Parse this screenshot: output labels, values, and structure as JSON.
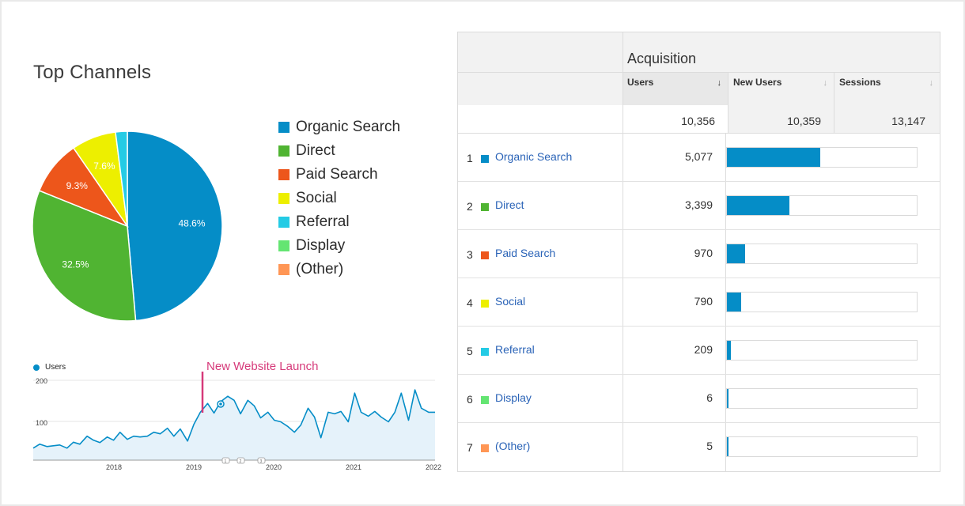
{
  "pie": {
    "title": "Top Channels",
    "slices": [
      {
        "name": "Organic Search",
        "value": 48.6,
        "label": "48.6%",
        "color": "#058dc7"
      },
      {
        "name": "Direct",
        "value": 32.5,
        "label": "32.5%",
        "color": "#50b432"
      },
      {
        "name": "Paid Search",
        "value": 9.3,
        "label": "9.3%",
        "color": "#ed561b"
      },
      {
        "name": "Social",
        "value": 7.6,
        "label": "7.6%",
        "color": "#edef00"
      },
      {
        "name": "Referral",
        "value": 2.0,
        "label": "",
        "color": "#24cbe5"
      },
      {
        "name": "Display",
        "value": 0.0,
        "label": "",
        "color": "#64e572"
      },
      {
        "name": "(Other)",
        "value": 0.0,
        "label": "",
        "color": "#ff9655"
      }
    ]
  },
  "line_chart": {
    "legend": "Users",
    "annotation": "New Website Launch",
    "color": "#058dc7",
    "y_ticks": [
      "200",
      "100"
    ],
    "x_ticks": [
      "2018",
      "2019",
      "2020",
      "2021",
      "2022"
    ],
    "markers": [
      "1",
      "2",
      "3"
    ]
  },
  "chart_data": {
    "type": "area",
    "xlabel": "",
    "ylabel": "",
    "ylim": [
      0,
      200
    ],
    "annotation": {
      "text": "New Website Launch",
      "x": 2019.1
    },
    "series": [
      {
        "name": "Users",
        "x": [
          2017.0,
          2017.08,
          2017.17,
          2017.25,
          2017.33,
          2017.42,
          2017.5,
          2017.58,
          2017.67,
          2017.75,
          2017.83,
          2017.92,
          2018.0,
          2018.08,
          2018.17,
          2018.25,
          2018.33,
          2018.42,
          2018.5,
          2018.58,
          2018.67,
          2018.75,
          2018.83,
          2018.92,
          2019.0,
          2019.08,
          2019.17,
          2019.25,
          2019.33,
          2019.42,
          2019.5,
          2019.58,
          2019.67,
          2019.75,
          2019.83,
          2019.92,
          2020.0,
          2020.08,
          2020.17,
          2020.25,
          2020.33,
          2020.42,
          2020.5,
          2020.58,
          2020.67,
          2020.75,
          2020.83,
          2020.92,
          2021.0,
          2021.08,
          2021.17,
          2021.25,
          2021.33,
          2021.42,
          2021.5,
          2021.58,
          2021.67,
          2021.75,
          2021.83,
          2021.92,
          2022.0
        ],
        "values": [
          30,
          40,
          34,
          36,
          38,
          30,
          45,
          40,
          60,
          50,
          44,
          58,
          50,
          70,
          52,
          60,
          58,
          60,
          70,
          66,
          80,
          60,
          78,
          48,
          90,
          120,
          142,
          118,
          146,
          160,
          150,
          116,
          150,
          136,
          106,
          120,
          100,
          96,
          84,
          70,
          88,
          130,
          108,
          56,
          120,
          116,
          122,
          96,
          168,
          120,
          110,
          122,
          108,
          96,
          120,
          168,
          100,
          176,
          130,
          120,
          120
        ]
      }
    ]
  },
  "table": {
    "group_title": "Acquisition",
    "columns": [
      {
        "label": "Users",
        "sort_icon": "↓"
      },
      {
        "label": "New Users",
        "sort_icon": "↓"
      },
      {
        "label": "Sessions",
        "sort_icon": "↓"
      }
    ],
    "totals": [
      "10,356",
      "10,359",
      "13,147"
    ],
    "rows": [
      {
        "num": "1",
        "name": "Organic Search",
        "users": "5,077",
        "share": 0.49,
        "color": "#058dc7"
      },
      {
        "num": "2",
        "name": "Direct",
        "users": "3,399",
        "share": 0.33,
        "color": "#50b432"
      },
      {
        "num": "3",
        "name": "Paid Search",
        "users": "970",
        "share": 0.094,
        "color": "#ed561b"
      },
      {
        "num": "4",
        "name": "Social",
        "users": "790",
        "share": 0.076,
        "color": "#edef00"
      },
      {
        "num": "5",
        "name": "Referral",
        "users": "209",
        "share": 0.02,
        "color": "#24cbe5"
      },
      {
        "num": "6",
        "name": "Display",
        "users": "6",
        "share": 0.0006,
        "color": "#64e572"
      },
      {
        "num": "7",
        "name": "(Other)",
        "users": "5",
        "share": 0.0005,
        "color": "#ff9655"
      }
    ]
  }
}
